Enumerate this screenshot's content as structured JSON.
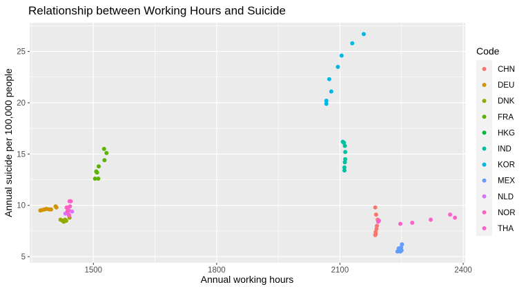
{
  "chart_data": {
    "type": "scatter",
    "title": "Relationship between Working Hours and Suicide",
    "xlabel": "Annual working hours",
    "ylabel": "Annual suicide per 100,000 people",
    "xlim": [
      1345,
      2405
    ],
    "ylim": [
      4.4,
      27.8
    ],
    "xticks": [
      1500,
      1800,
      2100,
      2400
    ],
    "yticks": [
      5,
      10,
      15,
      20,
      25
    ],
    "grid": true,
    "legend": {
      "title": "Code",
      "position": "right"
    },
    "series": [
      {
        "name": "CHN",
        "color": "#F8766D",
        "points": [
          [
            2186,
            9.8
          ],
          [
            2188,
            9.1
          ],
          [
            2192,
            8.6
          ],
          [
            2190,
            8.0
          ],
          [
            2189,
            7.7
          ],
          [
            2187,
            7.4
          ],
          [
            2186,
            7.1
          ],
          [
            2187,
            7.2
          ]
        ]
      },
      {
        "name": "DEU",
        "color": "#D39200",
        "points": [
          [
            1371,
            9.5
          ],
          [
            1376,
            9.55
          ],
          [
            1381,
            9.6
          ],
          [
            1386,
            9.65
          ],
          [
            1392,
            9.6
          ],
          [
            1397,
            9.6
          ],
          [
            1408,
            9.9
          ],
          [
            1410,
            9.8
          ]
        ]
      },
      {
        "name": "DNK",
        "color": "#93AA00",
        "points": [
          [
            1420,
            8.6
          ],
          [
            1425,
            8.5
          ],
          [
            1428,
            8.4
          ],
          [
            1431,
            8.6
          ],
          [
            1434,
            8.5
          ],
          [
            1442,
            8.8
          ]
        ]
      },
      {
        "name": "FRA",
        "color": "#5BB300",
        "points": [
          [
            1504,
            12.6
          ],
          [
            1507,
            13.3
          ],
          [
            1509,
            13.2
          ],
          [
            1512,
            12.6
          ],
          [
            1513,
            13.8
          ],
          [
            1527,
            14.4
          ],
          [
            1526,
            15.5
          ],
          [
            1532,
            15.1
          ]
        ]
      },
      {
        "name": "HKG",
        "color": "#00BA38",
        "points": []
      },
      {
        "name": "IND",
        "color": "#00C19F",
        "points": [
          [
            2107,
            16.2
          ],
          [
            2110,
            16.1
          ],
          [
            2112,
            15.8
          ],
          [
            2113,
            15.2
          ],
          [
            2113,
            14.5
          ],
          [
            2112,
            14.2
          ],
          [
            2111,
            13.7
          ],
          [
            2111,
            13.4
          ]
        ]
      },
      {
        "name": "KOR",
        "color": "#00B9E3",
        "points": [
          [
            2067,
            20.2
          ],
          [
            2067,
            19.9
          ],
          [
            2074,
            22.3
          ],
          [
            2079,
            21.1
          ],
          [
            2095,
            23.5
          ],
          [
            2104,
            24.6
          ],
          [
            2130,
            25.8
          ],
          [
            2158,
            26.7
          ]
        ]
      },
      {
        "name": "MEX",
        "color": "#619CFF",
        "points": [
          [
            2240,
            5.5
          ],
          [
            2243,
            5.8
          ],
          [
            2246,
            5.6
          ],
          [
            2249,
            5.9
          ],
          [
            2251,
            6.2
          ],
          [
            2247,
            5.5
          ],
          [
            2244,
            5.7
          ],
          [
            2250,
            5.6
          ]
        ]
      },
      {
        "name": "NLD",
        "color": "#DB72FB",
        "points": [
          [
            1432,
            9.2
          ],
          [
            1436,
            9.3
          ],
          [
            1440,
            9.1
          ],
          [
            1448,
            9.4
          ]
        ]
      },
      {
        "name": "NOR",
        "color": "#FF61C3",
        "points": [
          [
            1435,
            9.8
          ],
          [
            1438,
            9.6
          ],
          [
            1442,
            10.4
          ],
          [
            1445,
            10.4
          ],
          [
            1440,
            9.5
          ],
          [
            1437,
            9.4
          ],
          [
            1443,
            9.9
          ],
          [
            1441,
            9.0
          ]
        ]
      },
      {
        "name": "THA",
        "color": "#FF61CC",
        "points": [
          [
            2247,
            8.2
          ],
          [
            2276,
            8.3
          ],
          [
            2321,
            8.6
          ],
          [
            2368,
            9.1
          ],
          [
            2380,
            8.8
          ],
          [
            2193,
            8.4
          ],
          [
            2195,
            8.5
          ]
        ]
      }
    ]
  }
}
